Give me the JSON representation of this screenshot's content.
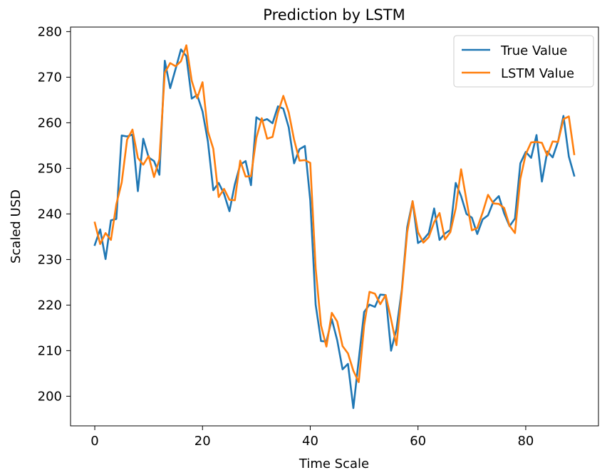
{
  "chart_data": {
    "type": "line",
    "title": "Prediction by LSTM",
    "xlabel": "Time Scale",
    "ylabel": "Scaled USD",
    "xlim": [
      -4.5,
      93.5
    ],
    "ylim": [
      193.5,
      281
    ],
    "xticks": [
      0,
      20,
      40,
      60,
      80
    ],
    "yticks": [
      200,
      210,
      220,
      230,
      240,
      250,
      260,
      270,
      280
    ],
    "grid": false,
    "legend_position": "top-right",
    "x": [
      0,
      1,
      2,
      3,
      4,
      5,
      6,
      7,
      8,
      9,
      10,
      11,
      12,
      13,
      14,
      15,
      16,
      17,
      18,
      19,
      20,
      21,
      22,
      23,
      24,
      25,
      26,
      27,
      28,
      29,
      30,
      31,
      32,
      33,
      34,
      35,
      36,
      37,
      38,
      39,
      40,
      41,
      42,
      43,
      44,
      45,
      46,
      47,
      48,
      49,
      50,
      51,
      52,
      53,
      54,
      55,
      56,
      57,
      58,
      59,
      60,
      61,
      62,
      63,
      64,
      65,
      66,
      67,
      68,
      69,
      70,
      71,
      72,
      73,
      74,
      75,
      76,
      77,
      78,
      79,
      80,
      81,
      82,
      83,
      84,
      85,
      86,
      87,
      88,
      89
    ],
    "series": [
      {
        "name": "True Value",
        "color": "#1f77b4",
        "values": [
          233.2,
          236.6,
          230.1,
          238.6,
          238.9,
          257.2,
          257.0,
          257.4,
          245.0,
          256.5,
          252.4,
          251.6,
          248.6,
          273.6,
          267.6,
          271.8,
          276.1,
          274.6,
          265.3,
          266.1,
          262.5,
          255.9,
          245.2,
          246.8,
          244.4,
          240.6,
          246.5,
          250.8,
          251.6,
          246.3,
          261.2,
          260.4,
          260.8,
          259.9,
          263.6,
          263.1,
          259.0,
          251.1,
          254.2,
          254.9,
          243.0,
          220.1,
          212.1,
          212.0,
          216.9,
          212.3,
          205.9,
          207.1,
          197.4,
          208.0,
          218.5,
          220.1,
          219.6,
          222.3,
          222.2,
          210.0,
          214.7,
          223.4,
          237.1,
          242.8,
          233.6,
          234.4,
          235.8,
          241.2,
          234.3,
          235.7,
          236.5,
          246.8,
          243.9,
          240.0,
          239.2,
          235.6,
          238.8,
          239.7,
          242.7,
          243.9,
          240.1,
          237.3,
          239.0,
          251.1,
          253.6,
          252.3,
          257.3,
          247.1,
          253.7,
          252.4,
          255.9,
          261.5,
          252.6,
          248.4
        ]
      },
      {
        "name": "LSTM Value",
        "color": "#ff7f0e",
        "values": [
          238.1,
          233.4,
          235.8,
          234.3,
          242.1,
          246.9,
          256.3,
          258.5,
          252.3,
          250.8,
          252.7,
          248.1,
          252.0,
          271.0,
          273.1,
          272.4,
          273.5,
          277.0,
          269.2,
          265.4,
          268.9,
          258.1,
          254.3,
          243.7,
          245.5,
          243.1,
          243.0,
          251.7,
          248.2,
          248.3,
          256.7,
          261.0,
          256.5,
          256.9,
          262.2,
          265.9,
          262.3,
          256.3,
          251.7,
          251.8,
          251.2,
          228.1,
          215.5,
          210.9,
          218.3,
          216.4,
          211.0,
          209.4,
          205.6,
          203.1,
          215.5,
          222.9,
          222.5,
          220.2,
          222.2,
          216.9,
          211.2,
          222.9,
          236.0,
          242.8,
          236.0,
          233.7,
          234.9,
          238.2,
          240.2,
          234.4,
          236.0,
          241.2,
          249.8,
          243.0,
          236.4,
          236.9,
          240.3,
          244.2,
          242.3,
          242.2,
          241.3,
          237.4,
          235.8,
          247.7,
          253.1,
          255.7,
          255.8,
          255.6,
          252.8,
          255.9,
          255.8,
          260.8,
          261.4,
          253.1
        ]
      }
    ]
  }
}
